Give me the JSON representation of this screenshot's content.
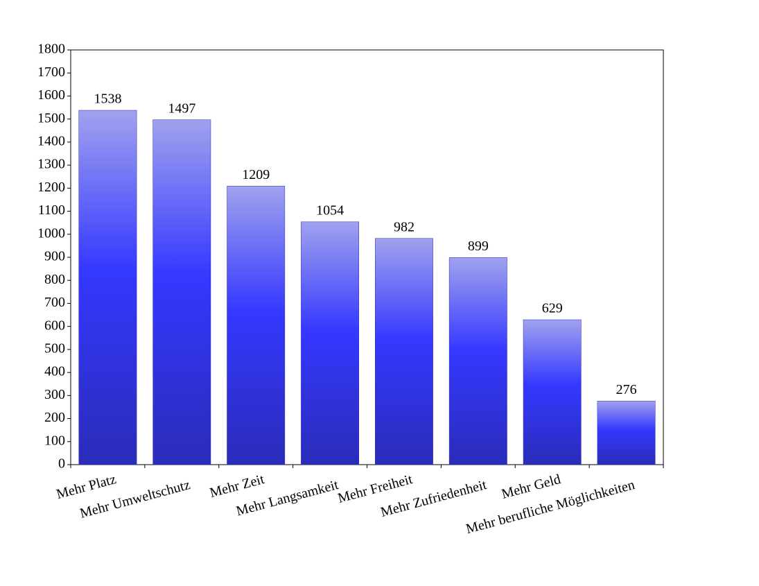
{
  "chart_data": {
    "type": "bar",
    "categories": [
      "Mehr Platz",
      "Mehr Umweltschutz",
      "Mehr Zeit",
      "Mehr Langsamkeit",
      "Mehr Freiheit",
      "Mehr Zufriedenheit",
      "Mehr Geld",
      "Mehr berufliche Möglichkeiten"
    ],
    "values": [
      1538,
      1497,
      1209,
      1054,
      982,
      899,
      629,
      276
    ],
    "color": "#3538ff",
    "ylim": [
      0,
      1800
    ],
    "yticks": [
      0,
      100,
      200,
      300,
      400,
      500,
      600,
      700,
      800,
      900,
      1000,
      1100,
      1200,
      1300,
      1400,
      1500,
      1600,
      1700,
      1800
    ]
  }
}
